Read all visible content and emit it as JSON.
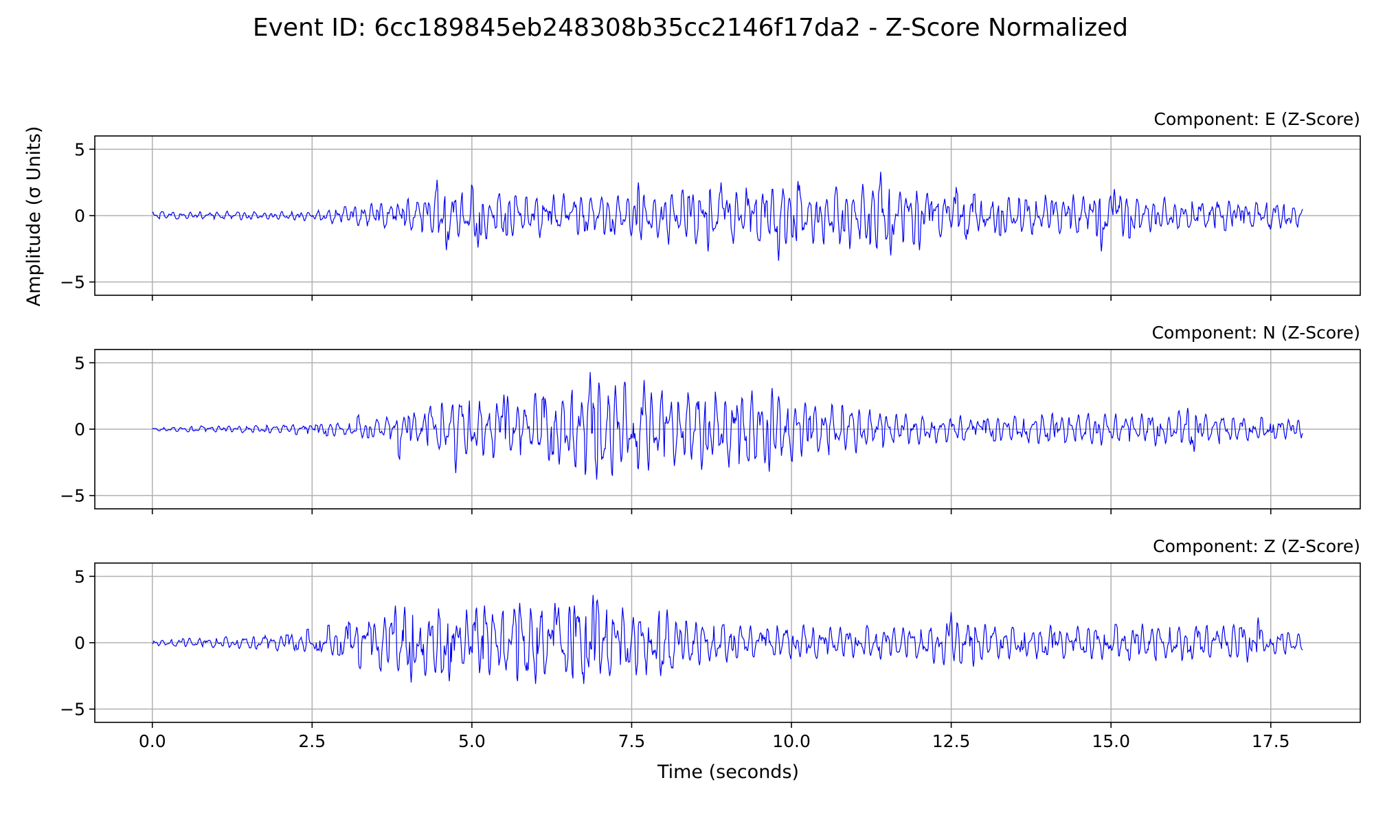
{
  "figure": {
    "title": "Event ID: 6cc189845eb248308b35cc2146f17da2 - Z-Score Normalized",
    "xlabel": "Time (seconds)",
    "ylabel": "Amplitude (σ Units)"
  },
  "colors": {
    "trace": "#0000ee",
    "grid": "#b0b0b0",
    "axes": "#000000"
  },
  "chart_data": [
    {
      "type": "line",
      "title": "Component: E (Z-Score)",
      "component": "E",
      "xlim": [
        -0.9,
        18.9
      ],
      "ylim": [
        -6,
        6
      ],
      "xticks": [
        0,
        2.5,
        5,
        7.5,
        10,
        12.5,
        15,
        17.5
      ],
      "xtick_labels": [
        "0.0",
        "2.5",
        "5.0",
        "7.5",
        "10.0",
        "12.5",
        "15.0",
        "17.5"
      ],
      "yticks": [
        -5,
        0,
        5
      ],
      "ytick_labels": [
        "−5",
        "0",
        "5"
      ],
      "grid": true,
      "duration_s": 18,
      "envelope_s": [
        [
          0,
          0.3
        ],
        [
          2.5,
          0.4
        ],
        [
          3.0,
          0.8
        ],
        [
          4.0,
          1.4
        ],
        [
          4.5,
          2.2
        ],
        [
          5.5,
          1.8
        ],
        [
          7.0,
          1.7
        ],
        [
          8.0,
          2.2
        ],
        [
          9.5,
          2.3
        ],
        [
          11.5,
          2.7
        ],
        [
          12.5,
          1.5
        ],
        [
          14.0,
          1.6
        ],
        [
          15.0,
          1.8
        ],
        [
          16.0,
          1.2
        ],
        [
          18.0,
          1.1
        ]
      ],
      "peaks": [
        [
          4.45,
          2.7
        ],
        [
          4.6,
          -2.6
        ],
        [
          5.1,
          -2.4
        ],
        [
          7.6,
          2.5
        ],
        [
          8.9,
          2.5
        ],
        [
          9.8,
          -3.4
        ],
        [
          10.1,
          2.6
        ],
        [
          11.4,
          3.3
        ],
        [
          11.55,
          -3.0
        ],
        [
          14.85,
          -2.7
        ],
        [
          15.05,
          2.0
        ],
        [
          12.0,
          -2.6
        ],
        [
          8.7,
          -2.7
        ]
      ],
      "samples": [
        0.3,
        0.4,
        0.2,
        -0.3,
        -0.2,
        0.1,
        -0.1,
        0.2,
        -0.2,
        0.1,
        0.3,
        -0.3,
        0.2,
        0.1,
        -0.2,
        0.3,
        -0.1,
        -0.2,
        0.2,
        0.1,
        -0.3,
        -0.4,
        0.3,
        0.5,
        -0.6,
        -0.2,
        0.8,
        -0.9,
        0.4,
        1.0,
        -1.2,
        0.6,
        1.3,
        -1.6,
        -0.3,
        1.5,
        -0.8,
        2.7,
        -2.6,
        0.4,
        1.6,
        -2.4,
        1.9,
        -0.5,
        0.3,
        -1.3,
        1.2,
        -0.9,
        0.6,
        1.4,
        -1.8,
        0.8,
        1.7,
        -2.0,
        0.5,
        1.1,
        -1.4,
        0.2,
        0.9,
        -0.7,
        1.5,
        -0.6,
        2.5,
        -1.9,
        1.3,
        -1.2,
        2.0,
        -1.8,
        0.3,
        2.3,
        -2.5,
        1.8,
        -0.9,
        2.5,
        -2.7,
        1.5,
        0.3,
        -1.0,
        0.6,
        2.4,
        -2.2,
        0.9,
        1.6,
        -3.4,
        2.6,
        -1.5,
        0.5,
        2.0,
        -2.4,
        0.8,
        2.4,
        -1.7,
        1.2,
        3.3,
        -3.0,
        2.5,
        -1.0,
        0.4,
        -2.6,
        1.4,
        -0.6,
        1.7,
        -1.2,
        0.3,
        1.8,
        -1.3,
        1.5,
        -1.8,
        0.7,
        1.6,
        -1.4,
        0.9,
        2.0,
        -2.7,
        1.1,
        0.3,
        -1.2,
        1.5,
        -0.9,
        0.6,
        -1.1,
        1.3,
        -0.8,
        1.6,
        -1.5,
        0.7,
        1.2,
        -1.0,
        0.5,
        -1.2,
        1.0,
        -0.9,
        0.4,
        0.6
      ]
    },
    {
      "type": "line",
      "title": "Component: N (Z-Score)",
      "component": "N",
      "xlim": [
        -0.9,
        18.9
      ],
      "ylim": [
        -6,
        6
      ],
      "xticks": [
        0,
        2.5,
        5,
        7.5,
        10,
        12.5,
        15,
        17.5
      ],
      "xtick_labels": [
        "0.0",
        "2.5",
        "5.0",
        "7.5",
        "10.0",
        "12.5",
        "15.0",
        "17.5"
      ],
      "yticks": [
        -5,
        0,
        5
      ],
      "ytick_labels": [
        "−5",
        "0",
        "5"
      ],
      "grid": true,
      "duration_s": 18,
      "envelope_s": [
        [
          0,
          0.2
        ],
        [
          2.5,
          0.4
        ],
        [
          3.5,
          0.8
        ],
        [
          4.2,
          1.4
        ],
        [
          4.8,
          2.6
        ],
        [
          5.5,
          2.4
        ],
        [
          6.9,
          3.8
        ],
        [
          8.2,
          3.3
        ],
        [
          9.7,
          2.9
        ],
        [
          10.5,
          2.2
        ],
        [
          11.5,
          1.5
        ],
        [
          13.0,
          0.9
        ],
        [
          14.0,
          1.4
        ],
        [
          16.0,
          1.3
        ],
        [
          18.0,
          0.8
        ]
      ],
      "peaks": [
        [
          4.75,
          -3.3
        ],
        [
          6.85,
          4.3
        ],
        [
          6.95,
          -3.8
        ],
        [
          7.25,
          3.3
        ],
        [
          7.7,
          3.7
        ],
        [
          9.7,
          3.1
        ],
        [
          9.65,
          -3.2
        ],
        [
          5.5,
          2.6
        ],
        [
          16.2,
          1.6
        ],
        [
          16.3,
          -1.7
        ]
      ],
      "samples": [
        0.0,
        -0.1,
        0.1,
        0.0,
        -0.2,
        0.3,
        -0.1,
        0.2,
        0.1,
        -0.2,
        0.3,
        -0.3,
        0.2,
        0.4,
        -0.5,
        0.3,
        0.6,
        -0.8,
        0.5,
        -0.3,
        1.4,
        -1.2,
        0.7,
        0.9,
        -3.3,
        1.6,
        -0.5,
        2.6,
        -2.0,
        0.8,
        2.5,
        -1.6,
        1.1,
        -0.9,
        1.8,
        -1.4,
        0.6,
        -0.4,
        4.3,
        -3.8,
        1.7,
        -2.1,
        0.9,
        3.3,
        -2.4,
        0.6,
        3.7,
        -2.6,
        1.5,
        -0.7,
        2.3,
        -1.8,
        1.2,
        2.8,
        -2.7,
        1.4,
        -1.9,
        3.1,
        -3.2,
        1.6,
        -0.8,
        2.2,
        -1.6,
        0.6,
        1.8,
        -1.4,
        0.9,
        -0.6,
        1.5,
        -1.0,
        0.4,
        1.2,
        -0.7,
        0.5,
        -0.4,
        0.8,
        -0.5,
        0.3,
        0.6,
        -0.9,
        0.7,
        1.4,
        -1.3,
        0.5,
        1.1,
        -1.0,
        0.6,
        -0.8,
        1.2,
        -0.9,
        0.5,
        1.0,
        -0.7,
        0.4,
        -0.6,
        0.9,
        -0.4,
        1.3,
        -1.2,
        0.6,
        1.6,
        -1.7,
        0.8,
        -0.5,
        1.1,
        -0.9,
        0.7,
        -0.6,
        1.0,
        -0.8,
        0.5,
        0.6,
        -0.3
      ]
    },
    {
      "type": "line",
      "title": "Component: Z (Z-Score)",
      "component": "Z",
      "xlim": [
        -0.9,
        18.9
      ],
      "ylim": [
        -6,
        6
      ],
      "xticks": [
        0,
        2.5,
        5,
        7.5,
        10,
        12.5,
        15,
        17.5
      ],
      "xtick_labels": [
        "0.0",
        "2.5",
        "5.0",
        "7.5",
        "10.0",
        "12.5",
        "15.0",
        "17.5"
      ],
      "yticks": [
        -5,
        0,
        5
      ],
      "ytick_labels": [
        "−5",
        "0",
        "5"
      ],
      "grid": true,
      "duration_s": 18,
      "envelope_s": [
        [
          0,
          0.3
        ],
        [
          2.5,
          0.7
        ],
        [
          3.5,
          1.8
        ],
        [
          4.0,
          2.8
        ],
        [
          5.0,
          2.8
        ],
        [
          6.2,
          3.0
        ],
        [
          6.9,
          3.4
        ],
        [
          8.0,
          2.3
        ],
        [
          9.5,
          1.4
        ],
        [
          11.5,
          1.3
        ],
        [
          12.5,
          2.0
        ],
        [
          13.5,
          1.3
        ],
        [
          15.0,
          1.4
        ],
        [
          17.0,
          1.6
        ],
        [
          18.0,
          0.8
        ]
      ],
      "peaks": [
        [
          3.8,
          2.8
        ],
        [
          3.95,
          2.7
        ],
        [
          4.05,
          -3.0
        ],
        [
          4.65,
          -2.9
        ],
        [
          5.2,
          2.8
        ],
        [
          5.75,
          3.0
        ],
        [
          6.0,
          -3.1
        ],
        [
          6.3,
          3.0
        ],
        [
          6.6,
          2.8
        ],
        [
          6.75,
          -3.1
        ],
        [
          6.9,
          3.6
        ],
        [
          8.05,
          2.5
        ],
        [
          7.95,
          -2.5
        ],
        [
          12.5,
          2.3
        ],
        [
          12.85,
          -1.8
        ],
        [
          17.3,
          1.9
        ]
      ],
      "samples": [
        -0.2,
        0.1,
        -0.3,
        0.4,
        -0.2,
        0.3,
        -0.4,
        0.5,
        -0.3,
        0.4,
        -0.6,
        0.8,
        -0.7,
        1.1,
        -0.9,
        1.4,
        -1.3,
        1.8,
        -1.6,
        2.8,
        -2.4,
        2.7,
        -3.0,
        2.0,
        -1.6,
        2.6,
        -2.2,
        1.8,
        -2.9,
        2.4,
        -1.2,
        2.8,
        -2.6,
        1.5,
        -2.0,
        3.0,
        -3.1,
        2.2,
        -1.4,
        3.0,
        -2.7,
        2.8,
        -3.1,
        3.6,
        -2.4,
        1.6,
        -2.0,
        1.9,
        -1.1,
        2.5,
        -2.5,
        1.6,
        -1.3,
        1.2,
        -0.8,
        1.4,
        -1.1,
        0.7,
        -1.0,
        1.3,
        -0.9,
        1.1,
        -0.7,
        0.8,
        -1.2,
        1.0,
        -0.6,
        0.9,
        -0.8,
        1.3,
        -1.1,
        0.7,
        -0.9,
        1.2,
        -1.0,
        0.6,
        -0.7,
        2.3,
        -1.8,
        1.5,
        -1.2,
        1.0,
        -0.9,
        1.3,
        -1.4,
        0.8,
        -1.1,
        1.6,
        -1.2,
        0.9,
        -1.0,
        1.2,
        -0.8,
        1.5,
        -1.2,
        1.0,
        -0.8,
        1.4,
        -0.9,
        1.1,
        -1.3,
        1.6,
        -1.0,
        0.8,
        -1.1,
        1.9,
        -1.3,
        0.9,
        -0.6,
        0.8,
        -0.4,
        -0.5
      ]
    }
  ]
}
